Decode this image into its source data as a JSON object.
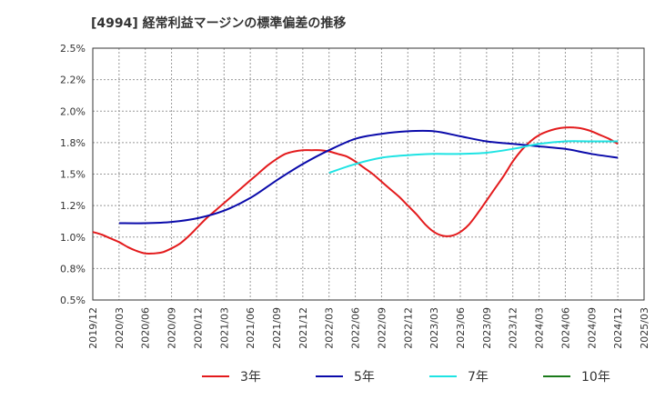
{
  "chart_data": {
    "type": "line",
    "title": "[4994]  経常利益マージンの標準偏差の推移",
    "xlabel": "",
    "ylabel": "",
    "x_ticks": [
      "2019/12",
      "2020/03",
      "2020/06",
      "2020/09",
      "2020/12",
      "2021/03",
      "2021/06",
      "2021/09",
      "2021/12",
      "2022/03",
      "2022/06",
      "2022/09",
      "2022/12",
      "2023/03",
      "2023/06",
      "2023/09",
      "2023/12",
      "2024/03",
      "2024/06",
      "2024/09",
      "2024/12",
      "2025/03"
    ],
    "y_ticks": [
      "0.5%",
      "0.8%",
      "1.0%",
      "1.2%",
      "1.5%",
      "1.8%",
      "2.0%",
      "2.2%",
      "2.5%"
    ],
    "ylim": [
      0.5,
      2.5
    ],
    "grid": true,
    "legend_position": "bottom",
    "series": [
      {
        "name": "3年",
        "color": "#e31a1c",
        "x": [
          "2019/12",
          "2020/01",
          "2020/02",
          "2020/03",
          "2020/04",
          "2020/05",
          "2020/06",
          "2020/07",
          "2020/08",
          "2020/09",
          "2020/10",
          "2020/11",
          "2020/12",
          "2021/01",
          "2021/02",
          "2021/03",
          "2021/04",
          "2021/05",
          "2021/06",
          "2021/07",
          "2021/08",
          "2021/09",
          "2021/10",
          "2021/11",
          "2021/12",
          "2022/01",
          "2022/02",
          "2022/03",
          "2022/04",
          "2022/05",
          "2022/06",
          "2022/07",
          "2022/08",
          "2022/09",
          "2022/10",
          "2022/11",
          "2022/12",
          "2023/01",
          "2023/02",
          "2023/03",
          "2023/04",
          "2023/05",
          "2023/06",
          "2023/07",
          "2023/08",
          "2023/09",
          "2023/10",
          "2023/11",
          "2023/12",
          "2024/01",
          "2024/02",
          "2024/03",
          "2024/04",
          "2024/05",
          "2024/06",
          "2024/07",
          "2024/08",
          "2024/09",
          "2024/10",
          "2024/11",
          "2024/12"
        ],
        "values": [
          1.04,
          1.02,
          0.99,
          0.96,
          0.92,
          0.89,
          0.87,
          0.87,
          0.88,
          0.91,
          0.95,
          1.01,
          1.08,
          1.15,
          1.21,
          1.27,
          1.33,
          1.39,
          1.45,
          1.51,
          1.57,
          1.62,
          1.66,
          1.68,
          1.69,
          1.69,
          1.69,
          1.68,
          1.66,
          1.64,
          1.6,
          1.55,
          1.5,
          1.44,
          1.38,
          1.32,
          1.25,
          1.18,
          1.1,
          1.04,
          1.01,
          1.01,
          1.04,
          1.1,
          1.19,
          1.29,
          1.39,
          1.49,
          1.6,
          1.69,
          1.76,
          1.81,
          1.84,
          1.86,
          1.87,
          1.87,
          1.86,
          1.84,
          1.81,
          1.78,
          1.74
        ]
      },
      {
        "name": "5年",
        "color": "#0a0aaa",
        "x": [
          "2020/03",
          "2020/06",
          "2020/09",
          "2020/12",
          "2021/03",
          "2021/06",
          "2021/09",
          "2021/12",
          "2022/03",
          "2022/06",
          "2022/09",
          "2022/12",
          "2023/03",
          "2023/06",
          "2023/09",
          "2023/12",
          "2024/03",
          "2024/06",
          "2024/09",
          "2024/12"
        ],
        "values": [
          1.11,
          1.11,
          1.12,
          1.15,
          1.21,
          1.31,
          1.45,
          1.58,
          1.69,
          1.78,
          1.82,
          1.84,
          1.84,
          1.8,
          1.76,
          1.74,
          1.72,
          1.7,
          1.66,
          1.63
        ]
      },
      {
        "name": "7年",
        "color": "#1ee3e3",
        "x": [
          "2022/03",
          "2022/06",
          "2022/09",
          "2022/12",
          "2023/03",
          "2023/06",
          "2023/09",
          "2023/12",
          "2024/03",
          "2024/06",
          "2024/09",
          "2024/12"
        ],
        "values": [
          1.51,
          1.58,
          1.63,
          1.65,
          1.66,
          1.66,
          1.67,
          1.7,
          1.74,
          1.76,
          1.76,
          1.76
        ]
      },
      {
        "name": "10年",
        "color": "#1a7a1a",
        "x": [],
        "values": []
      }
    ]
  }
}
